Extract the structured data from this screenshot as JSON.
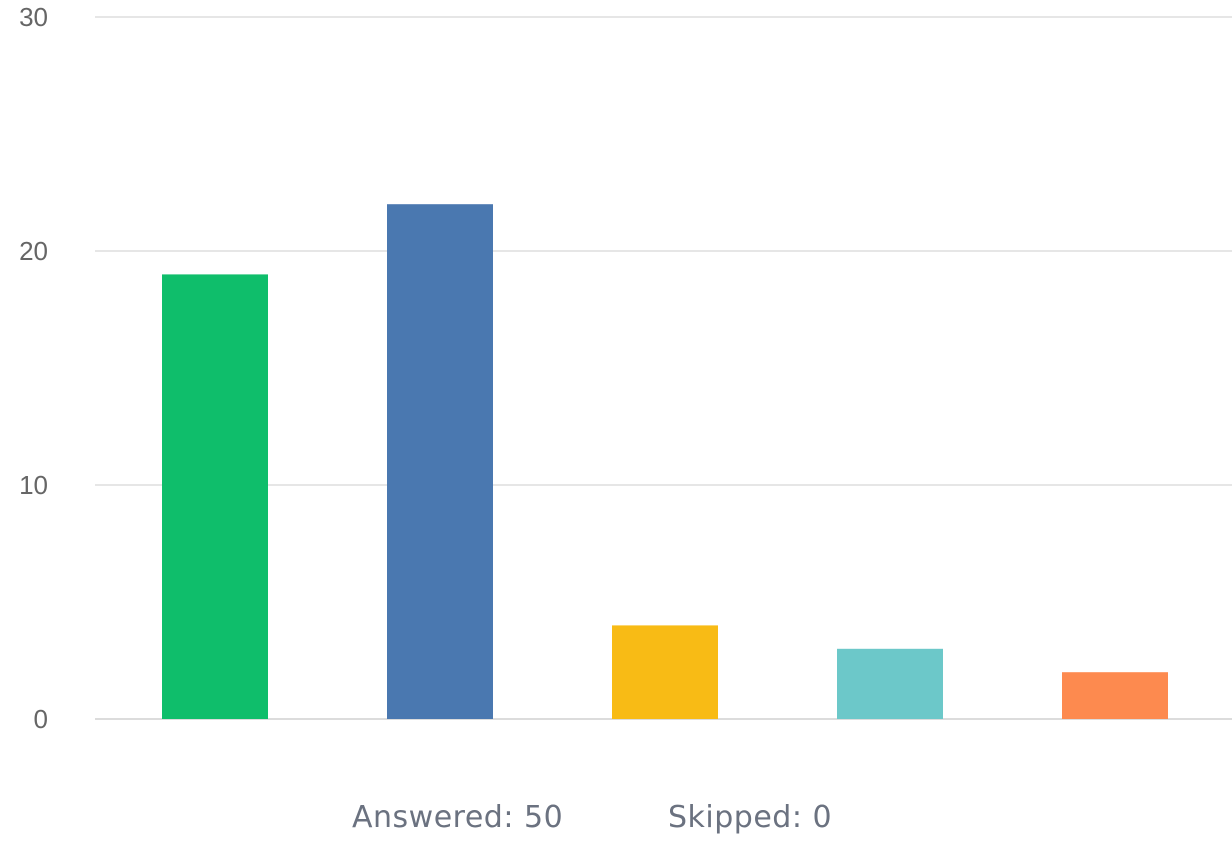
{
  "chart_data": {
    "type": "bar",
    "categories": [
      "",
      "",
      "",
      "",
      ""
    ],
    "values": [
      19,
      22,
      4,
      3,
      2
    ],
    "colors": [
      "#0fbe6b",
      "#4a78b0",
      "#f8bb15",
      "#6cc8c9",
      "#fd8a4f"
    ],
    "ylim": [
      0,
      30
    ],
    "yticks": [
      0,
      10,
      20,
      30
    ],
    "grid": true,
    "title": "",
    "xlabel": "",
    "ylabel": ""
  },
  "summary": {
    "answered": "Answered: 50",
    "skipped": "Skipped: 0"
  }
}
